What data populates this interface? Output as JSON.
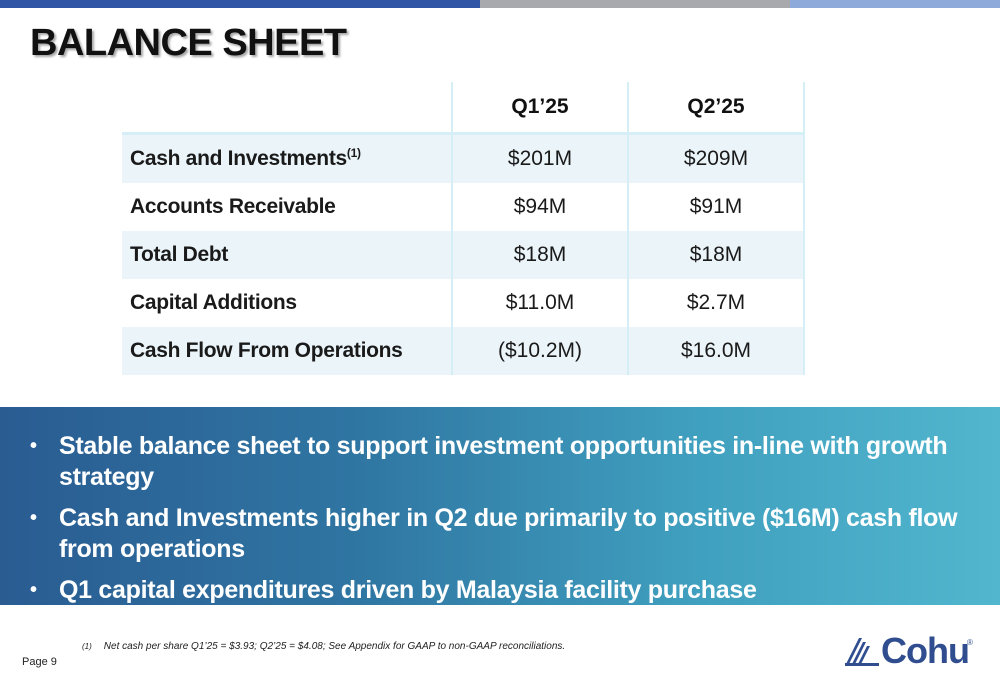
{
  "title": "BALANCE SHEET",
  "colors": {
    "accent_blue": "#2f55a4",
    "banner_start": "#2a5c92",
    "banner_end": "#52b6ce",
    "row_shade": "#eaf4f9",
    "logo": "#2f4d8f"
  },
  "table": {
    "headers": [
      "",
      "Q1’25",
      "Q2’25"
    ],
    "rows": [
      {
        "label": "Cash and Investments",
        "label_sup": "(1)",
        "q1": "$201M",
        "q2": "$209M"
      },
      {
        "label": "Accounts Receivable",
        "q1": "$94M",
        "q2": "$91M"
      },
      {
        "label": "Total Debt",
        "q1": "$18M",
        "q2": "$18M"
      },
      {
        "label": "Capital Additions",
        "q1": "$11.0M",
        "q2": "$2.7M"
      },
      {
        "label": "Cash Flow From Operations",
        "q1": "($10.2M)",
        "q2": "$16.0M"
      }
    ]
  },
  "bullets": [
    "Stable balance sheet to support investment opportunities in-line with growth strategy",
    "Cash and Investments higher in Q2 due primarily to positive ($16M) cash flow from operations",
    "Q1 capital expenditures driven by Malaysia facility purchase"
  ],
  "bullet_symbol": "•",
  "footnote": {
    "marker": "(1)",
    "text": "Net cash per share Q1’25 = $3.93; Q2’25 = $4.08; See Appendix for GAAP to non-GAAP reconciliations."
  },
  "page_label": "Page 9",
  "logo": {
    "text": "Cohu",
    "reg": "®",
    "icon": "cohu-logo-mark-icon"
  }
}
